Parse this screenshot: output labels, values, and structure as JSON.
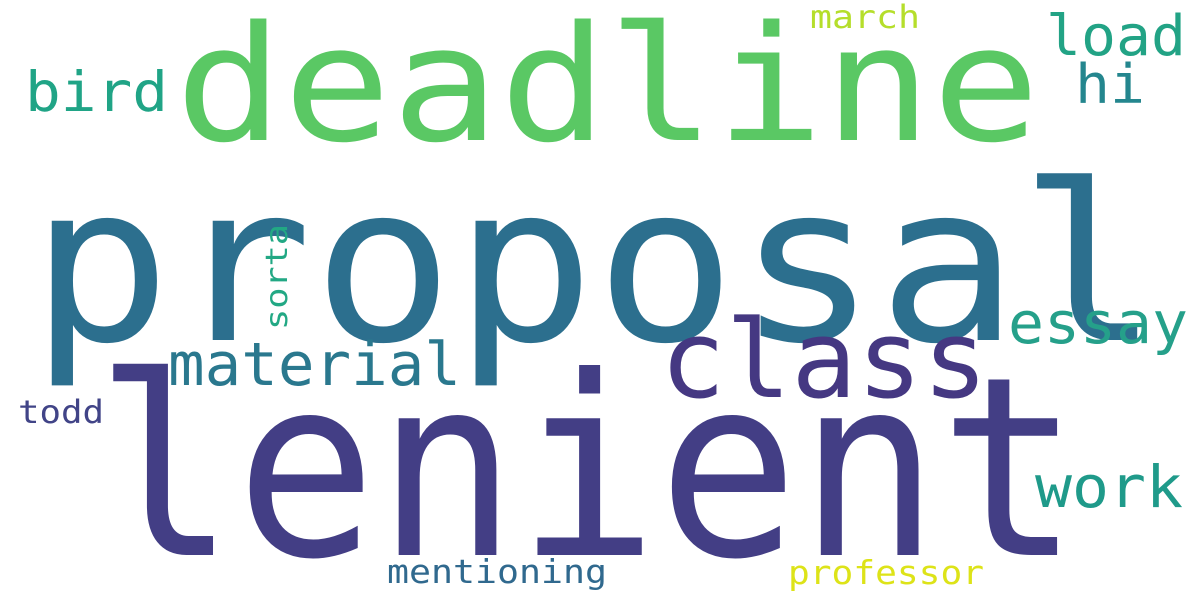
{
  "words": [
    {
      "id": "proposal",
      "text": "proposal",
      "color": "#2c6f8e"
    },
    {
      "id": "lenient",
      "text": "lenient",
      "color": "#433e85"
    },
    {
      "id": "deadline",
      "text": "deadline",
      "color": "#5ac864"
    },
    {
      "id": "class",
      "text": "class",
      "color": "#453882"
    },
    {
      "id": "material",
      "text": "material",
      "color": "#2a788e"
    },
    {
      "id": "essay",
      "text": "essay",
      "color": "#25a08a"
    },
    {
      "id": "work",
      "text": "work",
      "color": "#1f9a8a"
    },
    {
      "id": "load",
      "text": "load",
      "color": "#22a385"
    },
    {
      "id": "hi",
      "text": "hi",
      "color": "#24868e"
    },
    {
      "id": "bird",
      "text": "bird",
      "color": "#20a486"
    },
    {
      "id": "march",
      "text": "march",
      "color": "#b5de2b"
    },
    {
      "id": "sorta",
      "text": "sorta",
      "color": "#22a884"
    },
    {
      "id": "todd",
      "text": "todd",
      "color": "#414487"
    },
    {
      "id": "mentioning",
      "text": "mentioning",
      "color": "#30698e"
    },
    {
      "id": "professor",
      "text": "professor",
      "color": "#dde318"
    }
  ]
}
